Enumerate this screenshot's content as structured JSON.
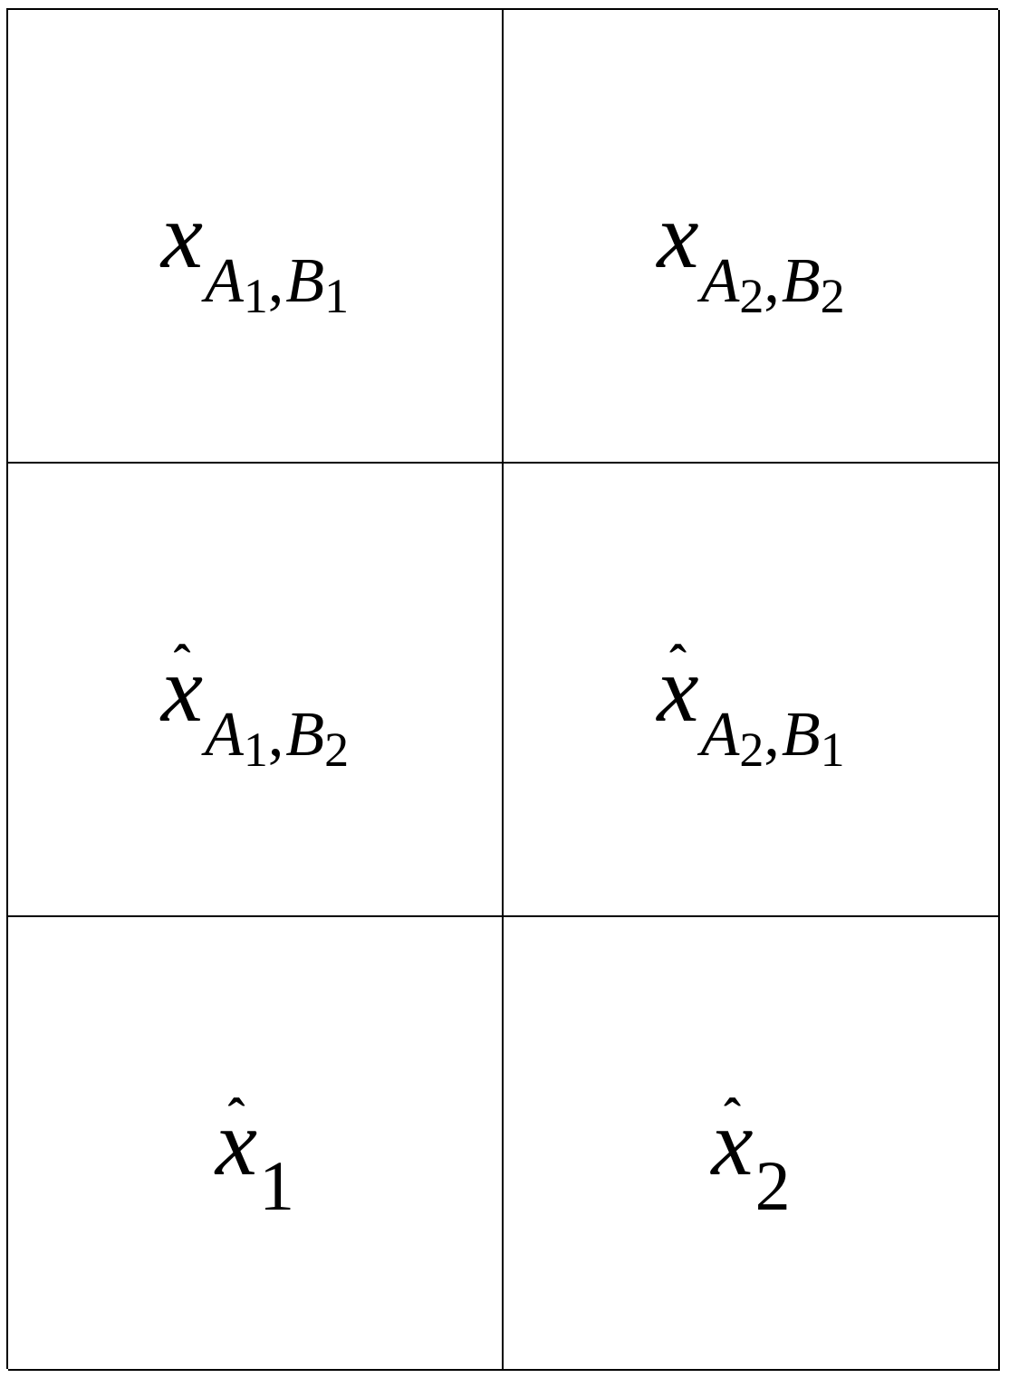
{
  "grid": {
    "cells": [
      {
        "var": "x",
        "hat": "",
        "subs": [
          {
            "letter": "A",
            "idx": "1"
          },
          {
            "letter": "B",
            "idx": "1"
          }
        ],
        "simple_sub": ""
      },
      {
        "var": "x",
        "hat": "",
        "subs": [
          {
            "letter": "A",
            "idx": "2"
          },
          {
            "letter": "B",
            "idx": "2"
          }
        ],
        "simple_sub": ""
      },
      {
        "var": "x",
        "hat": "ˆ",
        "subs": [
          {
            "letter": "A",
            "idx": "1"
          },
          {
            "letter": "B",
            "idx": "2"
          }
        ],
        "simple_sub": ""
      },
      {
        "var": "x",
        "hat": "ˆ",
        "subs": [
          {
            "letter": "A",
            "idx": "2"
          },
          {
            "letter": "B",
            "idx": "1"
          }
        ],
        "simple_sub": ""
      },
      {
        "var": "x",
        "hat": "ˆ",
        "subs": [],
        "simple_sub": "1"
      },
      {
        "var": "x",
        "hat": "ˆ",
        "subs": [],
        "simple_sub": "2"
      }
    ],
    "separator": ","
  }
}
